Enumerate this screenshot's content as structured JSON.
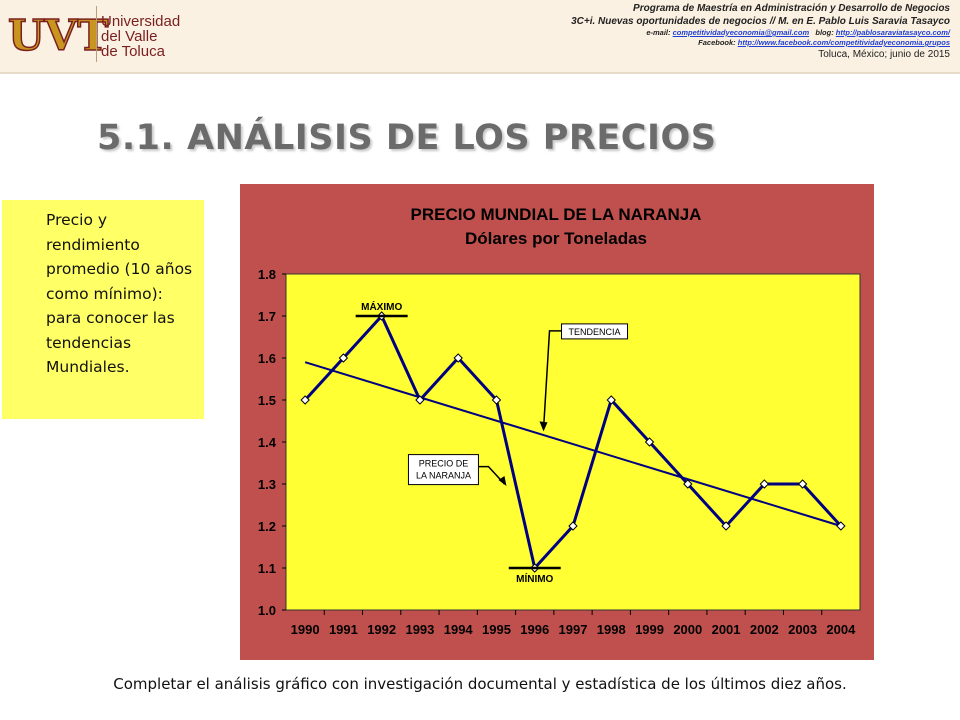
{
  "header": {
    "logo": {
      "mark": "UVT",
      "name_lines": [
        "Universidad",
        "del Valle",
        "de Toluca"
      ]
    },
    "line1": "Programa de Maestría en Administración y Desarrollo de Negocios",
    "line2": "3C+i. Nuevas oportunidades de negocios // M. en E. Pablo Luis Saravia Tasayco",
    "email_label": "e-mail:",
    "email": "competitividadyeconomia@gmail.com",
    "blog_label": "blog:",
    "blog": "http://pablosaraviatasayco.com/",
    "facebook_label": "Facebook:",
    "facebook": "http://www.facebook.com/competitividadyeconomia.grupos",
    "place_date": "Toluca, México; junio de 2015",
    "colors": {
      "logo_maroon": "#7a1f1f",
      "logo_gold": "#c8961e",
      "background": "#fbf1e2"
    }
  },
  "slide_title": "5.1. ANÁLISIS DE LOS PRECIOS",
  "note_text": "Precio y rendimiento promedio (10 años como mínimo): para conocer las tendencias Mundiales.",
  "footer": "Completar el análisis gráfico con investigación documental y estadística de los últimos diez años.",
  "chart_data": {
    "type": "line",
    "title": "PRECIO MUNDIAL DE LA NARANJA",
    "subtitle": "Dólares por Toneladas",
    "categories": [
      "1990",
      "1991",
      "1992",
      "1993",
      "1994",
      "1995",
      "1996",
      "1997",
      "1998",
      "1999",
      "2000",
      "2001",
      "2002",
      "2003",
      "2004"
    ],
    "series": [
      {
        "name": "",
        "values": [
          1.5,
          1.6,
          1.7,
          1.5,
          1.6,
          1.5,
          1.1,
          1.2,
          1.5,
          1.4,
          1.3,
          1.2,
          1.3,
          1.3,
          1.2
        ]
      }
    ],
    "trendline": {
      "start": 1.59,
      "end": 1.2
    },
    "ylim": [
      1.0,
      1.8
    ],
    "yticks": [
      "1.0",
      "1.1",
      "1.2",
      "1.3",
      "1.4",
      "1.5",
      "1.6",
      "1.7",
      "1.8"
    ],
    "annotations": {
      "max": "MÁXIMO",
      "min": "MÍNIMO",
      "trend": "TENDENCIA",
      "series_label": [
        "PRECIO DE",
        "LA NARANJA"
      ]
    },
    "grid": false,
    "colors": {
      "frame": "#c0504d",
      "plot_area": "#ffff33",
      "line": "#000080",
      "marker_fill": "#ffffff"
    }
  }
}
